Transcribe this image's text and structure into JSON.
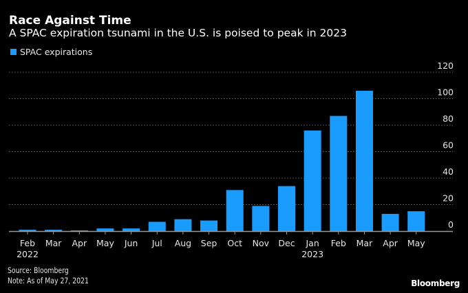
{
  "header": {
    "title": "Race Against Time",
    "subtitle": "A SPAC expiration tsunami in the U.S. is poised to peak in 2023"
  },
  "footer": {
    "source": "Source: Bloomberg",
    "note": "Note: As of May 27, 2021",
    "brand": "Bloomberg"
  },
  "colors": {
    "background": "#000000",
    "bar": "#1a9cff",
    "grid": "#6e6e6e",
    "axis": "#9a9a9a",
    "text": "#e6e6e6"
  },
  "chart_data": {
    "type": "bar",
    "title": "Race Against Time",
    "subtitle": "A SPAC expiration tsunami in the U.S. is poised to peak in 2023",
    "xlabel": "",
    "ylabel": "",
    "categories": [
      "Feb",
      "Mar",
      "Apr",
      "May",
      "Jun",
      "Jul",
      "Aug",
      "Sep",
      "Oct",
      "Nov",
      "Dec",
      "Jan",
      "Feb",
      "Mar",
      "Apr",
      "May"
    ],
    "category_years": {
      "0": "2022",
      "11": "2023"
    },
    "series": [
      {
        "name": "SPAC expirations",
        "values": [
          1,
          1,
          0.5,
          2,
          2,
          7,
          9,
          8,
          31,
          19,
          34,
          76,
          87,
          106,
          13,
          15
        ]
      }
    ],
    "ylim": [
      0,
      120
    ],
    "yticks": [
      0,
      20,
      40,
      60,
      80,
      100,
      120
    ],
    "y_axis_side": "right",
    "grid": true,
    "legend": {
      "entries": [
        "SPAC expirations"
      ],
      "placement": "top-left"
    }
  }
}
